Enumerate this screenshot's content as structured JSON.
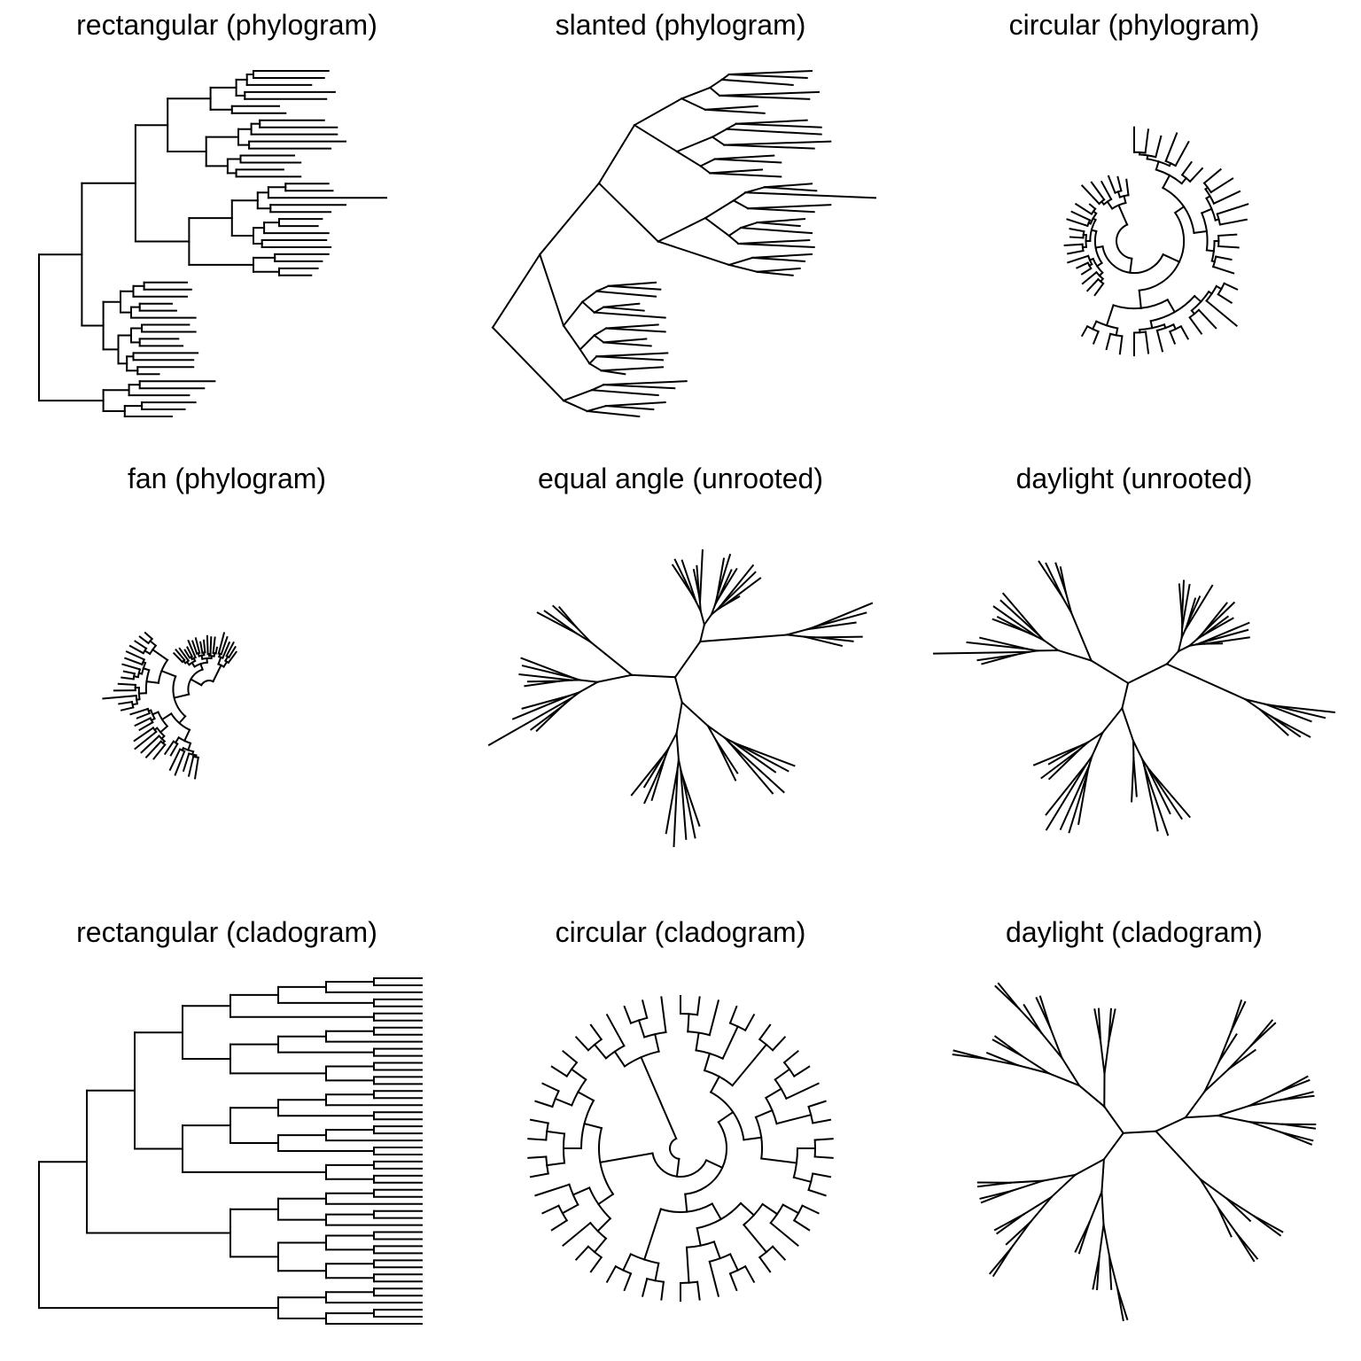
{
  "figure": {
    "panels": [
      {
        "id": "p1",
        "title": "rectangular (phylogram)",
        "layout": "rectangular",
        "branch": "phylogram"
      },
      {
        "id": "p2",
        "title": "slanted (phylogram)",
        "layout": "slanted",
        "branch": "phylogram"
      },
      {
        "id": "p3",
        "title": "circular (phylogram)",
        "layout": "circular",
        "branch": "phylogram"
      },
      {
        "id": "p4",
        "title": "fan (phylogram)",
        "layout": "fan",
        "branch": "phylogram"
      },
      {
        "id": "p5",
        "title": "equal angle (unrooted)",
        "layout": "equal_angle",
        "branch": "unrooted"
      },
      {
        "id": "p6",
        "title": "daylight (unrooted)",
        "layout": "daylight",
        "branch": "unrooted"
      },
      {
        "id": "p7",
        "title": "rectangular (cladogram)",
        "layout": "rectangular",
        "branch": "cladogram"
      },
      {
        "id": "p8",
        "title": "circular (cladogram)",
        "layout": "circular",
        "branch": "cladogram"
      },
      {
        "id": "p9",
        "title": "daylight (cladogram)",
        "layout": "daylight",
        "branch": "cladogram"
      }
    ],
    "line_color": "#000000",
    "background": "#ffffff",
    "tree": {
      "tips": 50,
      "newick": "((((((((t1:0.35,t2:0.33):0.03,t3:0.30):0.05,(t4:0.42,t5:0.38):0.04):0.12,(t6:0.22,t7:0.25):0.10):0.20,((((t8:0.30,t9:0.36):0.04,t10:0.40):0.06,(t11:0.45,t12:0.38):0.05):0.15,((t13:0.25,t14:0.28):0.06,(t15:0.22,t16:0.30):0.04):0.10):0.18):0.15,(((((t17:0.20,t18:0.22):0.08,t19:0.55):0.05,(t20:0.35,t21:0.28):0.06):0.12,(((t22:0.20,t23:0.18):0.07,t24:0.30):0.05,(t25:0.30,t26:0.32):0.04):0.10):0.20,((t27:0.25,t28:0.22):0.10,(t29:0.18,t30:0.15):0.12):0.30):0.25):0.25,((((t31:0.20,t32:0.22):0.05,t33:0.25):0.06,((t34:0.15,t35:0.17):0.04,t36:0.30):0.05):0.08,(((t37:0.22,t38:0.25):0.05,(t39:0.18,t40:0.20):0.04):0.06,((t41:0.30,t42:0.28):0.03,(t43:0.26,t44:0.10):0.05):0.04):0.07):0.10):0.20,(((t45:0.35,t46:0.30):0.05,t47:0.28):0.12,((t48:0.25,t49:0.20):0.08,t50:0.22):0.10):0.30);"
    }
  }
}
